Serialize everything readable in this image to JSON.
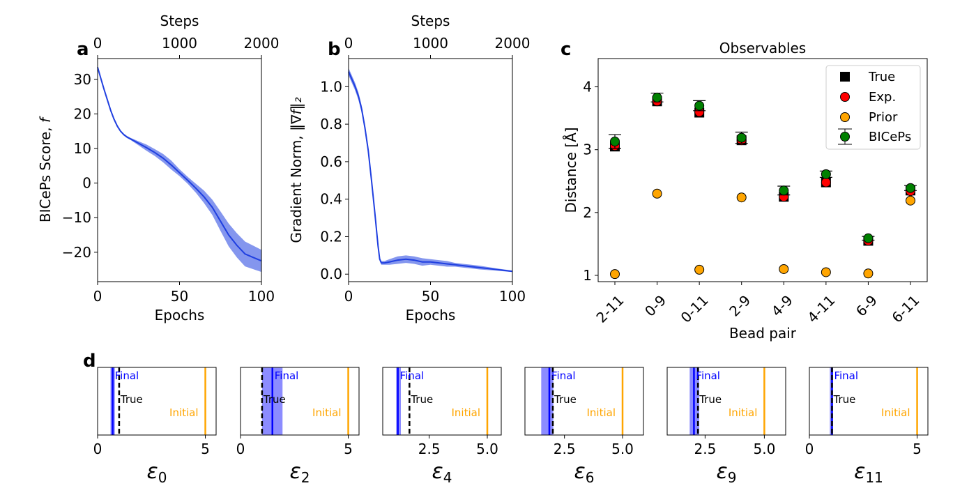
{
  "panel_letters": {
    "a": "a",
    "b": "b",
    "c": "c",
    "d": "d"
  },
  "chart_data": [
    {
      "id": "a",
      "type": "line",
      "xlabel": "Epochs",
      "ylabel": "BICePs Score, f",
      "ylabel_prefix": "BICePs Score,",
      "ylabel_var": "f",
      "top_xlabel": "Steps",
      "xlim": [
        0,
        100
      ],
      "ylim": [
        -28.5,
        36
      ],
      "xticks": [
        0,
        50,
        100
      ],
      "yticks": [
        30,
        20,
        10,
        0,
        -10,
        -20
      ],
      "ytick_labels": [
        "30",
        "20",
        "10",
        "0",
        "−10",
        "−20"
      ],
      "top_xticks": [
        0,
        1000,
        2000
      ],
      "top_xlim": [
        0,
        2000
      ],
      "color": "#1f3fe0",
      "x": [
        0,
        2,
        4,
        6,
        8,
        10,
        12,
        14,
        16,
        18,
        20,
        25,
        30,
        35,
        40,
        45,
        50,
        55,
        60,
        65,
        70,
        75,
        80,
        85,
        90,
        95,
        100
      ],
      "y": [
        33.5,
        30.2,
        27.0,
        24.0,
        21.0,
        18.5,
        16.5,
        15.0,
        14.0,
        13.3,
        12.8,
        11.5,
        10.2,
        8.8,
        7.2,
        5.2,
        3.0,
        0.8,
        -1.5,
        -4.0,
        -7.0,
        -11.0,
        -15.0,
        -18.0,
        -20.5,
        -21.5,
        -22.5
      ],
      "band": [
        0,
        0,
        0.2,
        0.3,
        0.4,
        0.4,
        0.4,
        0.3,
        0.3,
        0.3,
        0.3,
        0.6,
        0.9,
        1.0,
        1.2,
        1.3,
        1.0,
        1.0,
        1.3,
        1.8,
        2.2,
        2.8,
        3.3,
        3.5,
        3.6,
        3.4,
        3.2
      ]
    },
    {
      "id": "b",
      "type": "line",
      "xlabel": "Epochs",
      "ylabel": "Gradient Norm, ‖∇f‖₂",
      "ylabel_prefix": "Gradient Norm,",
      "ylabel_var": "‖∇f‖₂",
      "top_xlabel": "Steps",
      "xlim": [
        0,
        100
      ],
      "ylim": [
        -0.04,
        1.15
      ],
      "xticks": [
        0,
        50,
        100
      ],
      "yticks": [
        0.0,
        0.2,
        0.4,
        0.6,
        0.8,
        1.0
      ],
      "ytick_labels": [
        "0.0",
        "0.2",
        "0.4",
        "0.6",
        "0.8",
        "1.0"
      ],
      "top_xticks": [
        0,
        1000,
        2000
      ],
      "top_xlim": [
        0,
        2000
      ],
      "color": "#1f3fe0",
      "x": [
        0,
        2,
        4,
        6,
        8,
        10,
        12,
        14,
        16,
        18,
        19,
        20,
        22,
        25,
        30,
        35,
        40,
        45,
        50,
        55,
        60,
        65,
        70,
        75,
        80,
        85,
        90,
        95,
        100
      ],
      "y": [
        1.08,
        1.04,
        1.0,
        0.95,
        0.88,
        0.78,
        0.66,
        0.5,
        0.33,
        0.15,
        0.08,
        0.06,
        0.06,
        0.065,
        0.075,
        0.08,
        0.075,
        0.065,
        0.065,
        0.06,
        0.055,
        0.05,
        0.045,
        0.04,
        0.035,
        0.03,
        0.025,
        0.02,
        0.015
      ],
      "band": [
        0.02,
        0.02,
        0.02,
        0.02,
        0.02,
        0.02,
        0.02,
        0.02,
        0.02,
        0.02,
        0.01,
        0.01,
        0.01,
        0.015,
        0.02,
        0.02,
        0.02,
        0.02,
        0.015,
        0.015,
        0.015,
        0.01,
        0.01,
        0.01,
        0.01,
        0.008,
        0.006,
        0.005,
        0.004
      ]
    },
    {
      "id": "c",
      "type": "scatter",
      "title": "Observables",
      "xlabel": "Bead pair",
      "ylabel": "Distance [Å]",
      "categories": [
        "2-11",
        "0-9",
        "0-11",
        "2-9",
        "4-9",
        "4-11",
        "6-9",
        "6-11"
      ],
      "ylim": [
        0.9,
        4.45
      ],
      "yticks": [
        1,
        2,
        3,
        4
      ],
      "series": [
        {
          "name": "True",
          "marker": "square",
          "color": "#000000",
          "values": [
            3.05,
            3.77,
            3.59,
            3.15,
            2.25,
            2.48,
            1.55,
            2.35
          ]
        },
        {
          "name": "Exp.",
          "marker": "circle",
          "color": "#ff0000",
          "values": [
            3.06,
            3.77,
            3.6,
            3.15,
            2.25,
            2.48,
            1.55,
            2.34
          ]
        },
        {
          "name": "Prior",
          "marker": "circle",
          "color": "#ffa500",
          "values": [
            1.02,
            2.3,
            1.09,
            2.24,
            1.1,
            1.05,
            1.03,
            2.19
          ]
        },
        {
          "name": "BICePs",
          "marker": "circle",
          "color": "#008000",
          "values": [
            3.13,
            3.83,
            3.7,
            3.19,
            2.35,
            2.61,
            1.59,
            2.39
          ],
          "err": [
            0.11,
            0.07,
            0.08,
            0.09,
            0.07,
            0.05,
            0.03,
            0.04
          ]
        }
      ]
    },
    {
      "id": "d",
      "type": "vlines",
      "labels": {
        "final": "Final",
        "true": "True",
        "initial": "Initial"
      },
      "colors": {
        "final": "#0000ff",
        "true": "#000000",
        "initial": "#ffa500",
        "band": "#8080ff"
      },
      "subplots": [
        {
          "xlabel_sym": "ε",
          "xlabel_sub": "0",
          "xlim": [
            0,
            5.5
          ],
          "xticks": [
            0,
            5
          ],
          "xtick_labels": [
            "0",
            "5"
          ],
          "final": 0.7,
          "band": [
            0.6,
            0.8
          ],
          "true": 1.0,
          "initial": 5.0
        },
        {
          "xlabel_sym": "ε",
          "xlabel_sub": "2",
          "xlim": [
            0,
            5.5
          ],
          "xticks": [
            0,
            5
          ],
          "xtick_labels": [
            "0",
            "5"
          ],
          "final": 1.48,
          "band": [
            1.0,
            1.95
          ],
          "true": 1.0,
          "initial": 5.0
        },
        {
          "xlabel_sym": "ε",
          "xlabel_sub": "4",
          "xlim": [
            0.5,
            5.6
          ],
          "xticks": [
            2.5,
            5.0
          ],
          "xtick_labels": [
            "2.5",
            "5.0"
          ],
          "final": 1.15,
          "band": [
            1.08,
            1.28
          ],
          "true": 1.65,
          "initial": 5.0
        },
        {
          "xlabel_sym": "ε",
          "xlabel_sub": "6",
          "xlim": [
            0.8,
            5.9
          ],
          "xticks": [
            2.5,
            5.0
          ],
          "xtick_labels": [
            "2.5",
            "5.0"
          ],
          "final": 1.85,
          "band": [
            1.5,
            2.02
          ],
          "true": 2.0,
          "initial": 5.0
        },
        {
          "xlabel_sym": "ε",
          "xlabel_sub": "9",
          "xlim": [
            0.9,
            5.9
          ],
          "xticks": [
            2.5,
            5.0
          ],
          "xtick_labels": [
            "2.5",
            "5.0"
          ],
          "final": 2.03,
          "band": [
            1.85,
            2.25
          ],
          "true": 2.2,
          "initial": 5.0
        },
        {
          "xlabel_sym": "ε",
          "xlabel_sub": "11",
          "xlim": [
            0,
            5.5
          ],
          "xticks": [
            0,
            5
          ],
          "xtick_labels": [
            "0",
            "5"
          ],
          "final": 1.05,
          "band": [
            0.95,
            1.1
          ],
          "true": 1.05,
          "initial": 5.0
        }
      ]
    }
  ]
}
